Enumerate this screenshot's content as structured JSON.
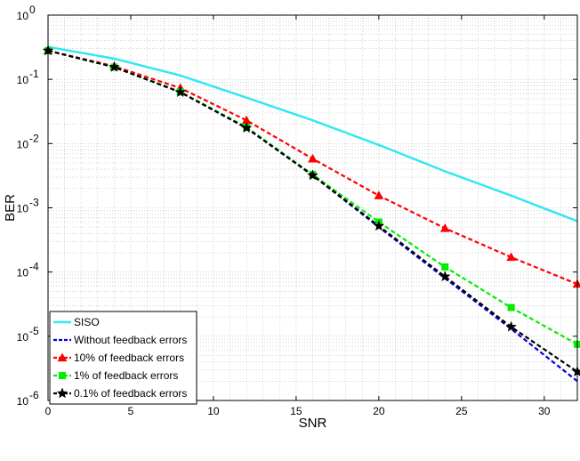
{
  "chart_data": {
    "type": "line",
    "xlabel": "SNR",
    "ylabel": "BER",
    "xlim": [
      0,
      32
    ],
    "ylim": [
      1e-06,
      1
    ],
    "yscale": "log",
    "grid": true,
    "legend_position": "bottom-left",
    "x_ticks": [
      {
        "value": 0,
        "label": "0"
      },
      {
        "value": 5,
        "label": "5"
      },
      {
        "value": 10,
        "label": "10"
      },
      {
        "value": 15,
        "label": "15"
      },
      {
        "value": 20,
        "label": "20"
      },
      {
        "value": 25,
        "label": "25"
      },
      {
        "value": 30,
        "label": "30"
      }
    ],
    "y_ticks": [
      {
        "value": 1,
        "base": "10",
        "exp": "0"
      },
      {
        "value": 0.1,
        "base": "10",
        "exp": "-1"
      },
      {
        "value": 0.01,
        "base": "10",
        "exp": "-2"
      },
      {
        "value": 0.001,
        "base": "10",
        "exp": "-3"
      },
      {
        "value": 0.0001,
        "base": "10",
        "exp": "-4"
      },
      {
        "value": 1e-05,
        "base": "10",
        "exp": "-5"
      },
      {
        "value": 1e-06,
        "base": "10",
        "exp": "-6"
      }
    ],
    "series": [
      {
        "name": "SISO",
        "color": "#33e8ee",
        "style": "solid",
        "marker": "none",
        "x": [
          0,
          4,
          8,
          12,
          16,
          20,
          24,
          28,
          32
        ],
        "y": [
          0.32,
          0.21,
          0.115,
          0.052,
          0.023,
          0.0095,
          0.0037,
          0.00155,
          0.00062
        ]
      },
      {
        "name": "Without feedback errors",
        "color": "#0000dd",
        "style": "dashed",
        "marker": "none",
        "x": [
          0,
          4,
          8,
          12,
          16,
          20,
          24,
          28,
          32
        ],
        "y": [
          0.28,
          0.155,
          0.063,
          0.0175,
          0.0032,
          0.0005,
          8e-05,
          1.3e-05,
          2e-06
        ]
      },
      {
        "name": "10% of feedback errors",
        "color": "#ff0000",
        "style": "dashed",
        "marker": "triangle",
        "x": [
          0,
          4,
          8,
          12,
          16,
          20,
          24,
          28,
          32
        ],
        "y": [
          0.28,
          0.16,
          0.073,
          0.023,
          0.0058,
          0.00155,
          0.00048,
          0.00017,
          6.5e-05
        ]
      },
      {
        "name": "1% of feedback errors",
        "color": "#00ee00",
        "style": "dashed",
        "marker": "square",
        "x": [
          0,
          4,
          8,
          12,
          16,
          20,
          24,
          28,
          32
        ],
        "y": [
          0.28,
          0.155,
          0.064,
          0.018,
          0.0033,
          0.0006,
          0.00012,
          2.8e-05,
          7.5e-06
        ]
      },
      {
        "name": "0.1% of feedback errors",
        "color": "#000000",
        "style": "dashed",
        "marker": "star",
        "x": [
          0,
          4,
          8,
          12,
          16,
          20,
          24,
          28,
          32
        ],
        "y": [
          0.28,
          0.155,
          0.063,
          0.0175,
          0.0032,
          0.00052,
          8.5e-05,
          1.4e-05,
          2.8e-06
        ]
      }
    ]
  }
}
